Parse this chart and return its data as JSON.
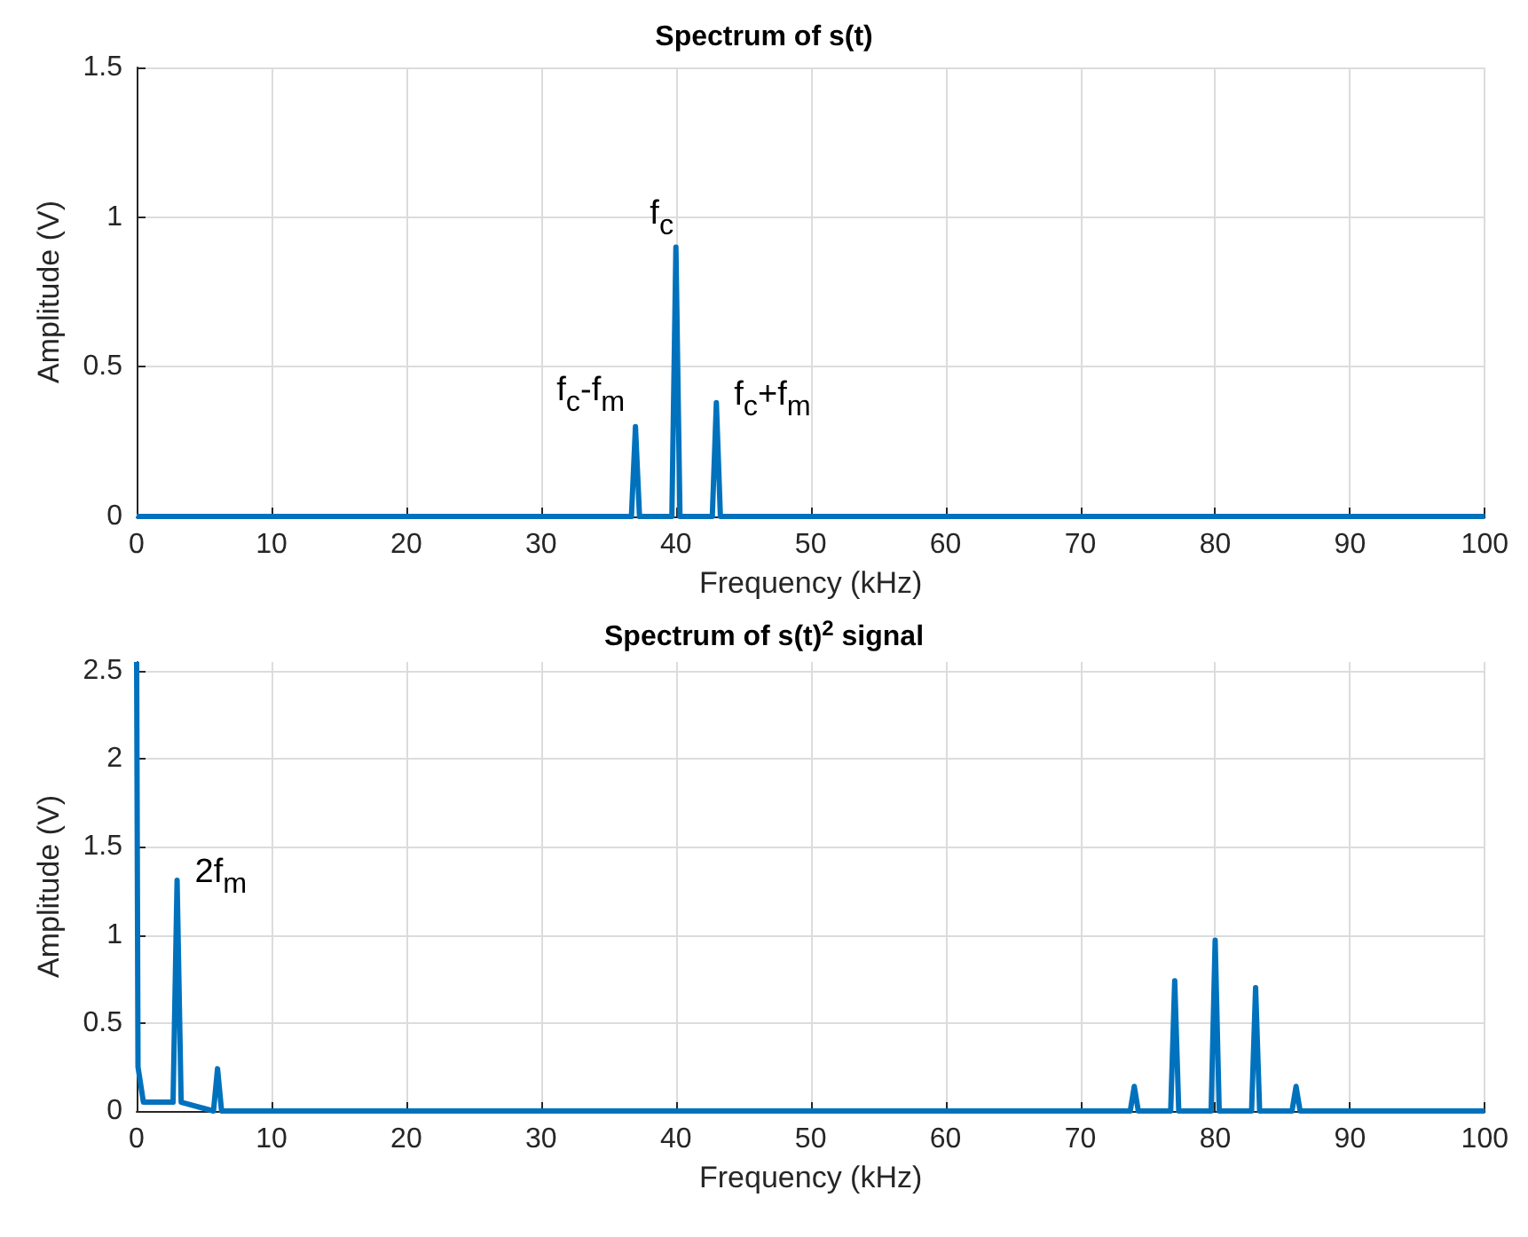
{
  "chart_data": [
    {
      "type": "line",
      "title": "Spectrum of s(t)",
      "xlabel": "Frequency (kHz)",
      "ylabel": "Amplitude (V)",
      "series": [
        {
          "color": "#0072bd",
          "x": [
            0,
            36.7,
            37,
            37.3,
            39.7,
            40,
            40.3,
            42.7,
            43,
            43.3,
            100
          ],
          "values": [
            0,
            0,
            0.3,
            0,
            0,
            0.9,
            0,
            0,
            0.38,
            0,
            0
          ]
        }
      ],
      "xlim": [
        0,
        100
      ],
      "xticks": [
        0,
        10,
        20,
        30,
        40,
        50,
        60,
        70,
        80,
        90,
        100
      ],
      "ylim": [
        0,
        1.5
      ],
      "yticks": [
        0,
        0.5,
        1,
        1.5
      ],
      "grid": true,
      "marker": "none",
      "line_style": "solid",
      "annotations": [
        {
          "text": "f$_{c}$",
          "x": 40,
          "y": 0.9
        },
        {
          "text": "f$_{c}$-f$_{m}$",
          "x": 37,
          "y": 0.3
        },
        {
          "text": "f$_{c}$+f$_{m}$",
          "x": 43,
          "y": 0.38
        }
      ]
    },
    {
      "type": "line",
      "title": "Spectrum of s(t)$^{2}$ signal",
      "xlabel": "Frequency (kHz)",
      "ylabel": "Amplitude (V)",
      "series": [
        {
          "color": "#0072bd",
          "x": [
            0,
            0.1,
            0.5,
            2.7,
            3,
            3.3,
            5.7,
            6,
            6.3,
            73.7,
            74,
            74.3,
            76.7,
            77,
            77.3,
            79.7,
            80,
            80.3,
            82.7,
            83,
            83.3,
            85.7,
            86,
            86.3,
            100
          ],
          "values": [
            2.55,
            0.25,
            0.05,
            0.05,
            1.31,
            0.05,
            0,
            0.24,
            0,
            0,
            0.14,
            0,
            0,
            0.74,
            0,
            0,
            0.97,
            0,
            0,
            0.7,
            0,
            0,
            0.14,
            0,
            0
          ]
        }
      ],
      "xlim": [
        0,
        100
      ],
      "xticks": [
        0,
        10,
        20,
        30,
        40,
        50,
        60,
        70,
        80,
        90,
        100
      ],
      "ylim": [
        0,
        2.55
      ],
      "yticks": [
        0,
        0.5,
        1,
        1.5,
        2,
        2.5
      ],
      "grid": true,
      "marker": "none",
      "line_style": "solid",
      "annotations": [
        {
          "text": "2f$_{m}$",
          "x": 3,
          "y": 1.31
        }
      ]
    }
  ]
}
